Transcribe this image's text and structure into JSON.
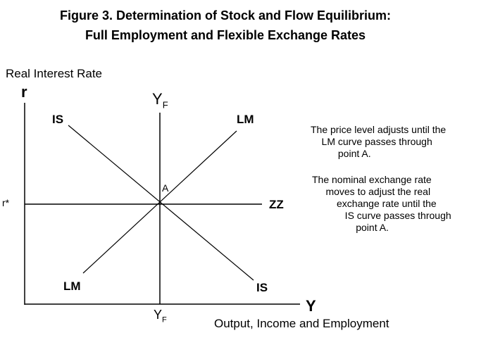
{
  "title_line1": "Figure 3.   Determination of Stock and Flow Equilibrium:",
  "title_line2": "Full Employment and Flexible Exchange Rates",
  "y_axis_title": "Real Interest Rate",
  "y_axis_symbol": "r",
  "x_axis_symbol": "Y",
  "x_axis_title": "Output, Income and Employment",
  "r_star_label": "r*",
  "yf_label": {
    "main": "Y",
    "sub": "F"
  },
  "curves": {
    "is": "IS",
    "lm": "LM",
    "zz": "ZZ"
  },
  "point_label": "A",
  "note1": "The price level adjusts until the\n    LM curve passes through\n          point A.",
  "note2": "The nominal exchange rate\n     moves to adjust the real\n         exchange rate until the\n            IS curve passes through\n                point A."
}
